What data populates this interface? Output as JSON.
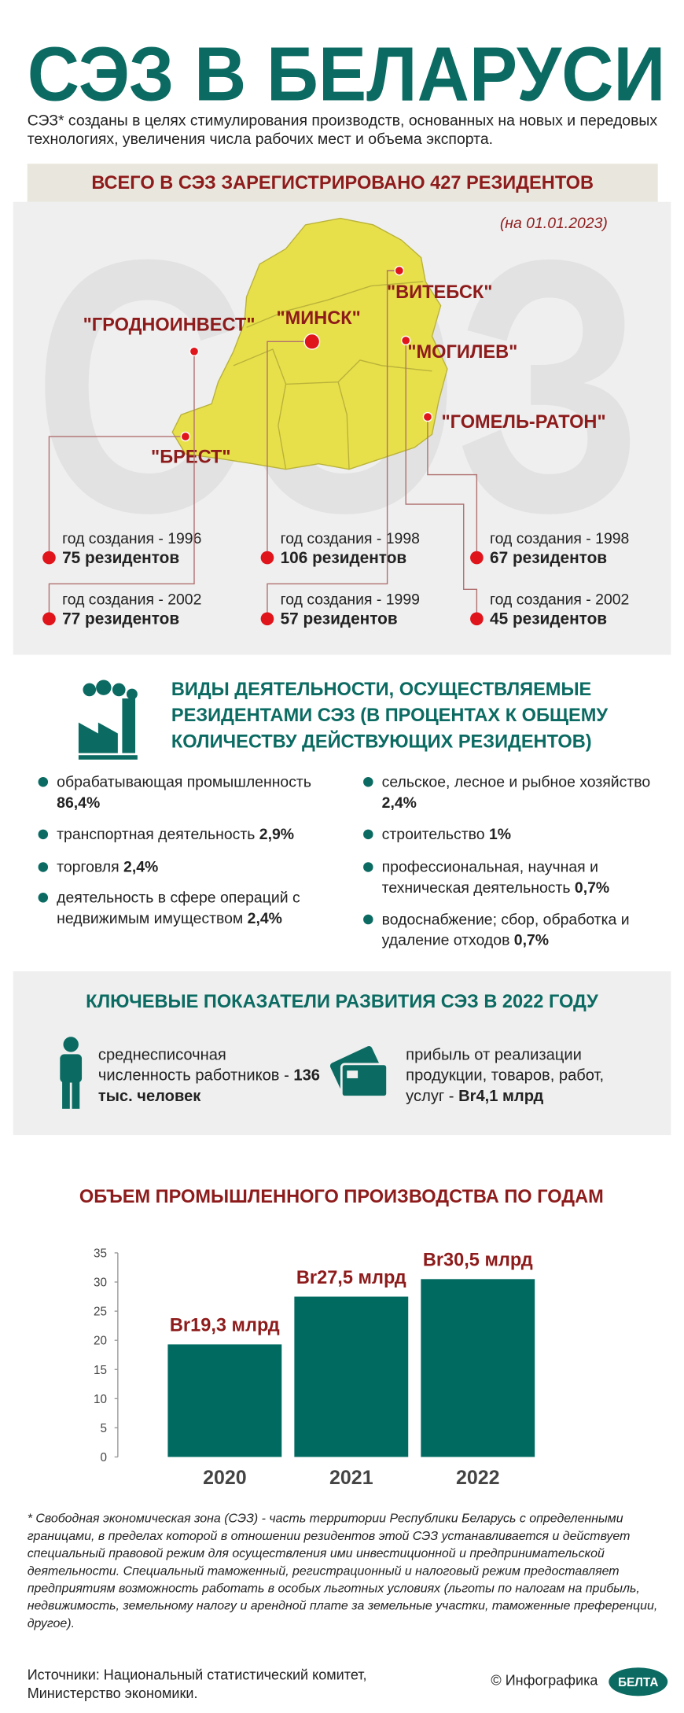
{
  "header": {
    "title": "СЭЗ В БЕЛАРУСИ",
    "intro": "СЭЗ* созданы в целях стимулирования производств, основанных на новых и передовых технологиях, увеличения числа рабочих мест и объема экспорта."
  },
  "map": {
    "banner": "ВСЕГО В СЭЗ ЗАРЕГИСТРИРОВАНО 427 РЕЗИДЕНТОВ",
    "watermark": "СЭЗ",
    "date": "(на 01.01.2023)",
    "zones": [
      {
        "name": "\"БРЕСТ\"",
        "founded": "год создания - 1996",
        "residents": "75 резидентов"
      },
      {
        "name": "\"ГРОДНОИНВЕСТ\"",
        "founded": "год создания - 2002",
        "residents": "77 резидентов"
      },
      {
        "name": "\"МИНСК\"",
        "founded": "год создания - 1998",
        "residents": "106 резидентов"
      },
      {
        "name": "\"ВИТЕБСК\"",
        "founded": "год создания - 1999",
        "residents": "57 резидентов"
      },
      {
        "name": "\"ГОМЕЛЬ-РАТОН\"",
        "founded": "год создания - 1998",
        "residents": "67 резидентов"
      },
      {
        "name": "\"МОГИЛЕВ\"",
        "founded": "год создания - 2002",
        "residents": "45 резидентов"
      }
    ]
  },
  "activities": {
    "title": "ВИДЫ ДЕЯТЕЛЬНОСТИ, ОСУЩЕСТВЛЯЕМЫЕ РЕЗИДЕНТАМИ СЭЗ (В ПРОЦЕНТАХ К ОБЩЕМУ КОЛИЧЕСТВУ ДЕЙСТВУЮЩИХ РЕЗИДЕНТОВ)",
    "items": [
      {
        "text": "обрабатывающая промышленность",
        "value": "86,4%"
      },
      {
        "text": "транспортная деятельность",
        "value": "2,9%"
      },
      {
        "text": "торговля",
        "value": "2,4%"
      },
      {
        "text": "деятельность в сфере операций с недвижимым имуществом",
        "value": "2,4%"
      },
      {
        "text": "сельское, лесное и рыбное хозяйство",
        "value": "2,4%"
      },
      {
        "text": "строительство",
        "value": "1%"
      },
      {
        "text": "профессиональная, научная и техническая деятельность",
        "value": "0,7%"
      },
      {
        "text": "водоснабжение; сбор, обработка и удаление отходов",
        "value": "0,7%"
      }
    ]
  },
  "indicators": {
    "title": "КЛЮЧЕВЫЕ ПОКАЗАТЕЛИ РАЗВИТИЯ СЭЗ В 2022 ГОДУ",
    "items": [
      {
        "text": "среднесписочная численность работников -",
        "value": "136 тыс. человек"
      },
      {
        "text": "прибыль от реализации продукции, товаров, работ, услуг -",
        "value": "Br4,1 млрд"
      }
    ]
  },
  "chart_data": {
    "type": "bar",
    "title": "ОБЪЕМ ПРОМЫШЛЕННОГО ПРОИЗВОДСТВА ПО ГОДАМ",
    "categories": [
      "2020",
      "2021",
      "2022"
    ],
    "values": [
      19.3,
      27.5,
      30.5
    ],
    "value_labels": [
      "Br19,3 млрд",
      "Br27,5 млрд",
      "Br30,5 млрд"
    ],
    "color": "#006a61",
    "ylim": [
      0,
      35
    ],
    "yticks": [
      0,
      5,
      10,
      15,
      20,
      25,
      30,
      35
    ],
    "grid": false
  },
  "footnote": "* Свободная экономическая зона (СЭЗ) - часть территории Республики Беларусь с определенными границами, в пределах которой в отношении резидентов этой СЭЗ устанавливается и действует специальный правовой режим для осуществления ими инвестиционной и предпринимательской деятельности. Специальный таможенный, регистрационный и налоговый режим предоставляет предприятиям возможность работать в особых льготных условиях (льготы по налогам на прибыль, недвижимость, земельному налогу и арендной плате за земельные участки, таможенные преференции, другое).",
  "sources": "Источники: Национальный статистический комитет, Министерство экономики.",
  "credit": "© Инфографика",
  "logo": "БЕЛТА"
}
